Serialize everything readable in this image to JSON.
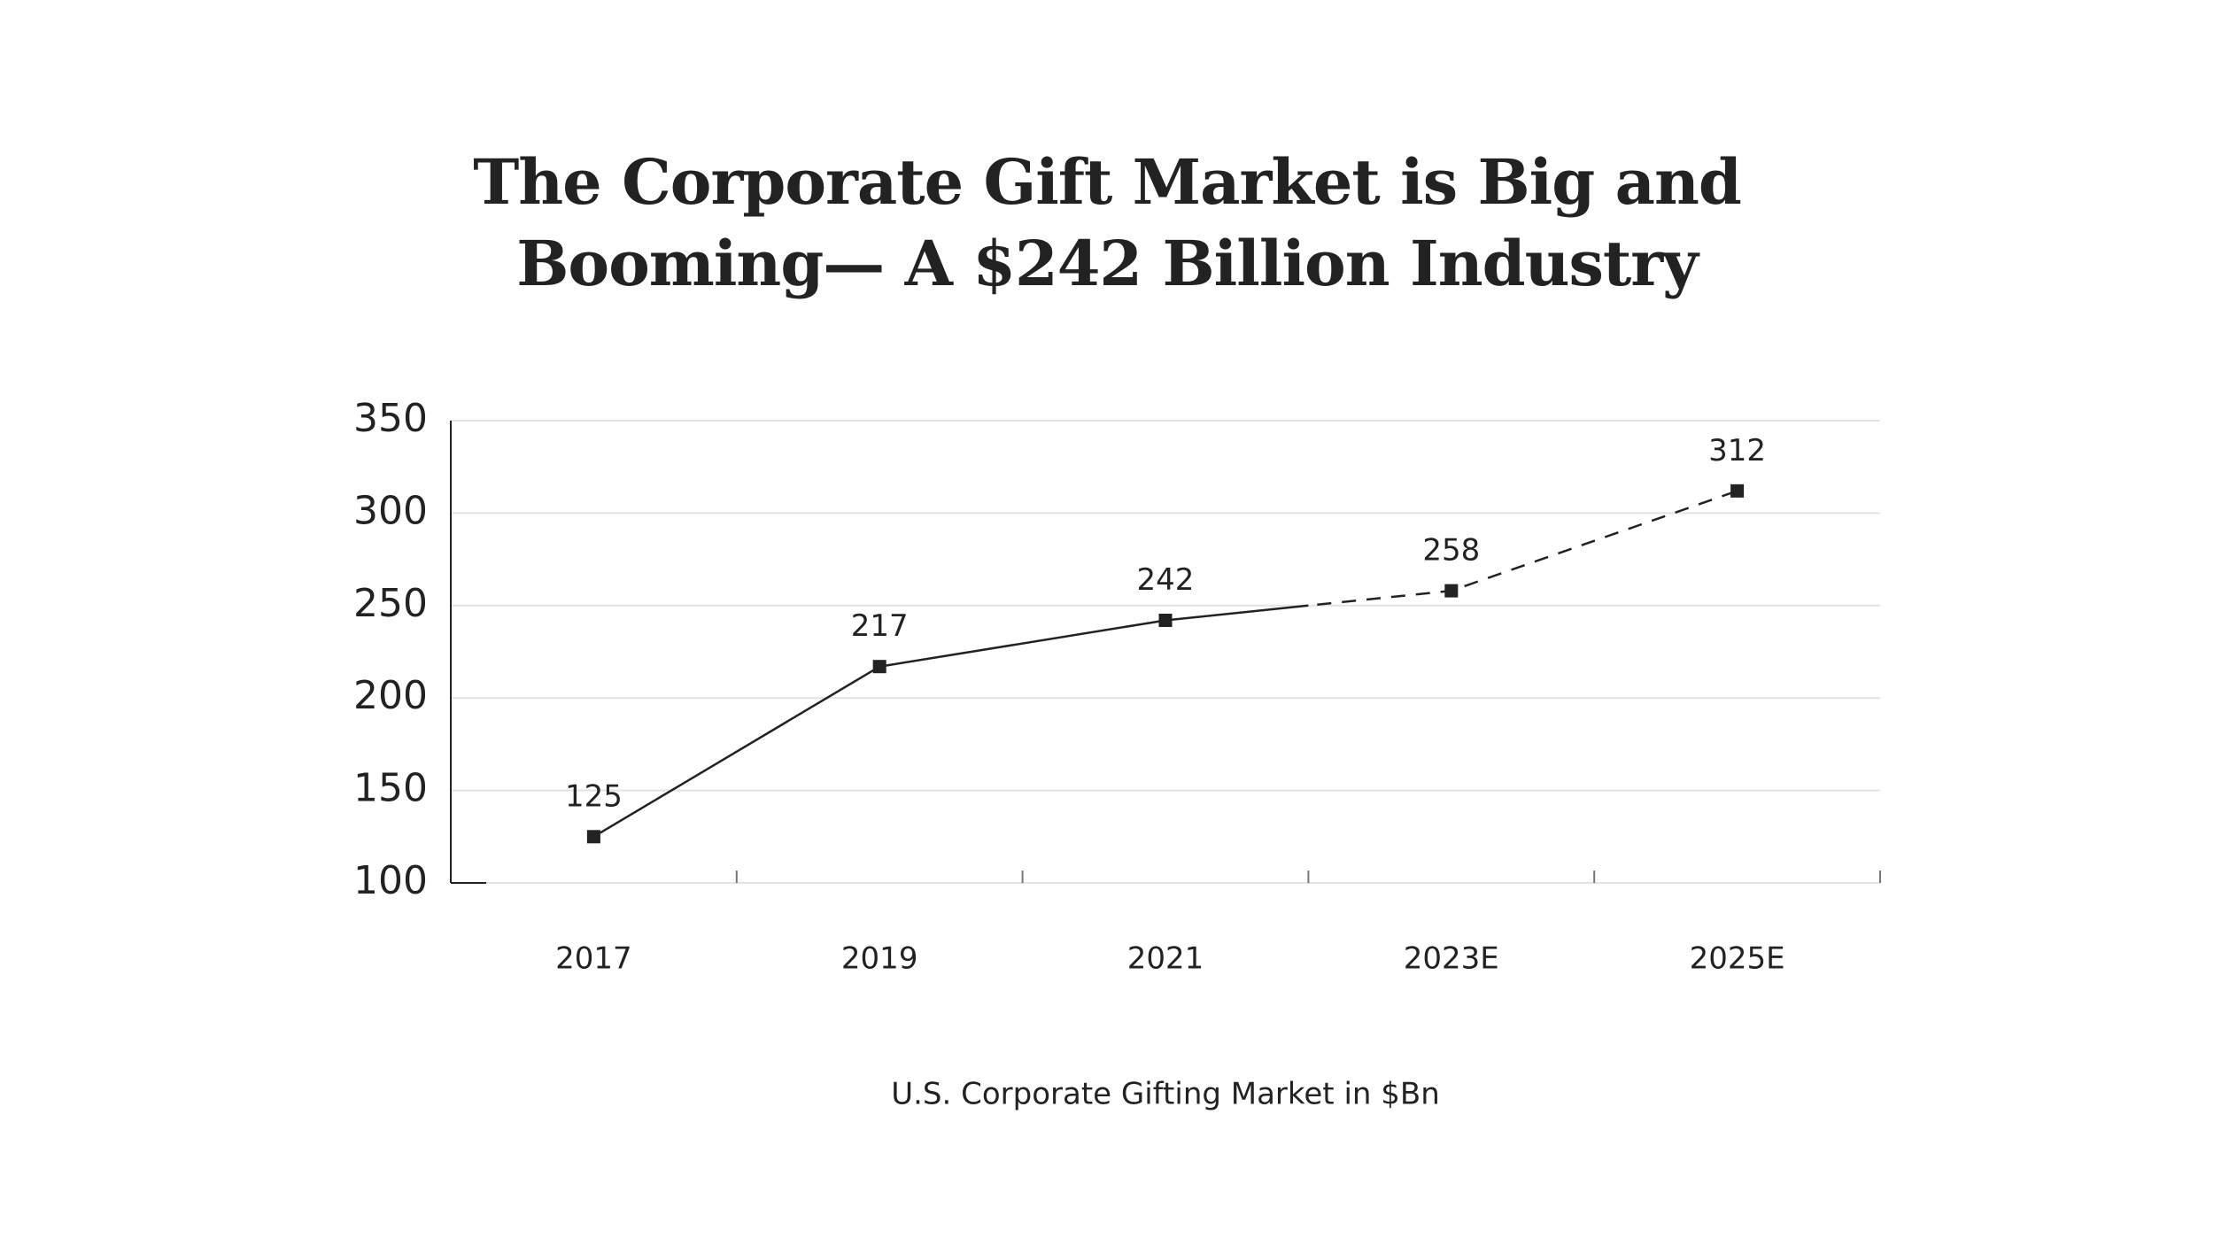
{
  "chart_data": {
    "type": "line",
    "title": "The Corporate Gift Market is Big and Booming— A $242 Billion Industry",
    "x_label": "U.S. Corporate Gifting Market in $Bn",
    "categories": [
      "2017",
      "2019",
      "2021",
      "2023E",
      "2025E"
    ],
    "series": [
      {
        "color": "#222222",
        "values": [
          125,
          217,
          242,
          258,
          312
        ]
      }
    ],
    "ylim": [
      100,
      350
    ],
    "yticks": [
      100,
      150,
      200,
      250,
      300,
      350
    ],
    "grid": true
  }
}
